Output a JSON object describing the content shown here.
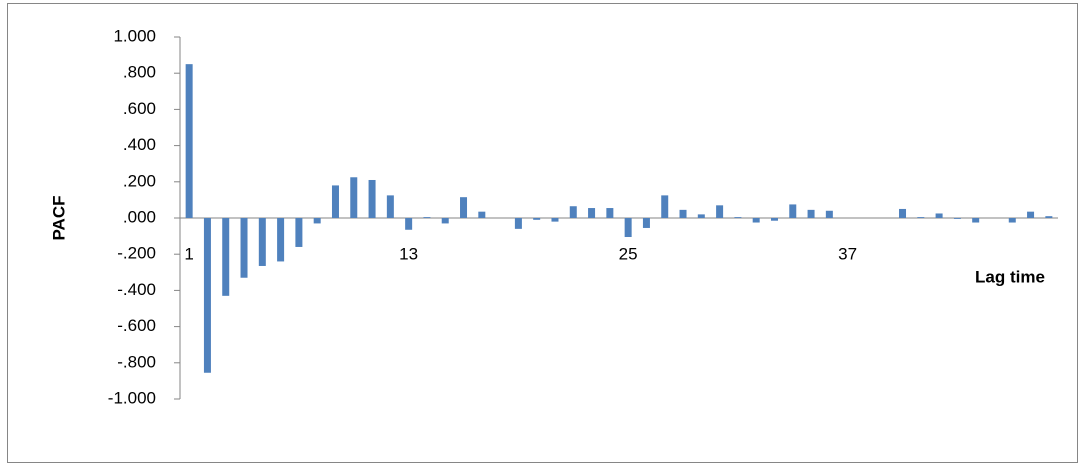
{
  "chart_data": {
    "type": "bar",
    "y_label": "PACF",
    "x_label": "Lag time",
    "color": "#4f81bd",
    "categories": [
      "1",
      null,
      null,
      null,
      null,
      null,
      null,
      null,
      null,
      null,
      null,
      null,
      "13",
      null,
      null,
      null,
      null,
      null,
      null,
      null,
      null,
      null,
      null,
      null,
      "25",
      null,
      null,
      null,
      null,
      null,
      null,
      null,
      null,
      null,
      null,
      null,
      "37",
      null,
      null,
      null,
      null,
      null,
      null,
      null,
      null,
      null,
      null,
      null
    ],
    "values": [
      0.85,
      -0.855,
      -0.43,
      -0.33,
      -0.265,
      -0.24,
      -0.16,
      -0.03,
      0.18,
      0.225,
      0.21,
      0.125,
      -0.065,
      0.005,
      -0.03,
      0.115,
      0.035,
      0,
      -0.06,
      -0.01,
      -0.02,
      0.065,
      0.055,
      0.055,
      -0.105,
      -0.055,
      0.125,
      0.045,
      0.02,
      0.07,
      0.005,
      -0.025,
      -0.015,
      0.075,
      0.045,
      0.04,
      0,
      0,
      0,
      0.05,
      0.005,
      0.025,
      -0.005,
      -0.025,
      0,
      -0.025,
      0.035,
      0.01
    ],
    "ylim": [
      -1,
      1
    ],
    "yticks": [
      {
        "value": -1,
        "label": "-1.000"
      },
      {
        "value": -0.8,
        "label": "-.800"
      },
      {
        "value": -0.6,
        "label": "-.600"
      },
      {
        "value": -0.4,
        "label": "-.400"
      },
      {
        "value": -0.2,
        "label": "-.200"
      },
      {
        "value": 0,
        "label": ".000"
      },
      {
        "value": 0.2,
        "label": ".200"
      },
      {
        "value": 0.4,
        "label": ".400"
      },
      {
        "value": 0.6,
        "label": ".600"
      },
      {
        "value": 0.8,
        "label": ".800"
      },
      {
        "value": 1,
        "label": "1.000"
      }
    ]
  }
}
